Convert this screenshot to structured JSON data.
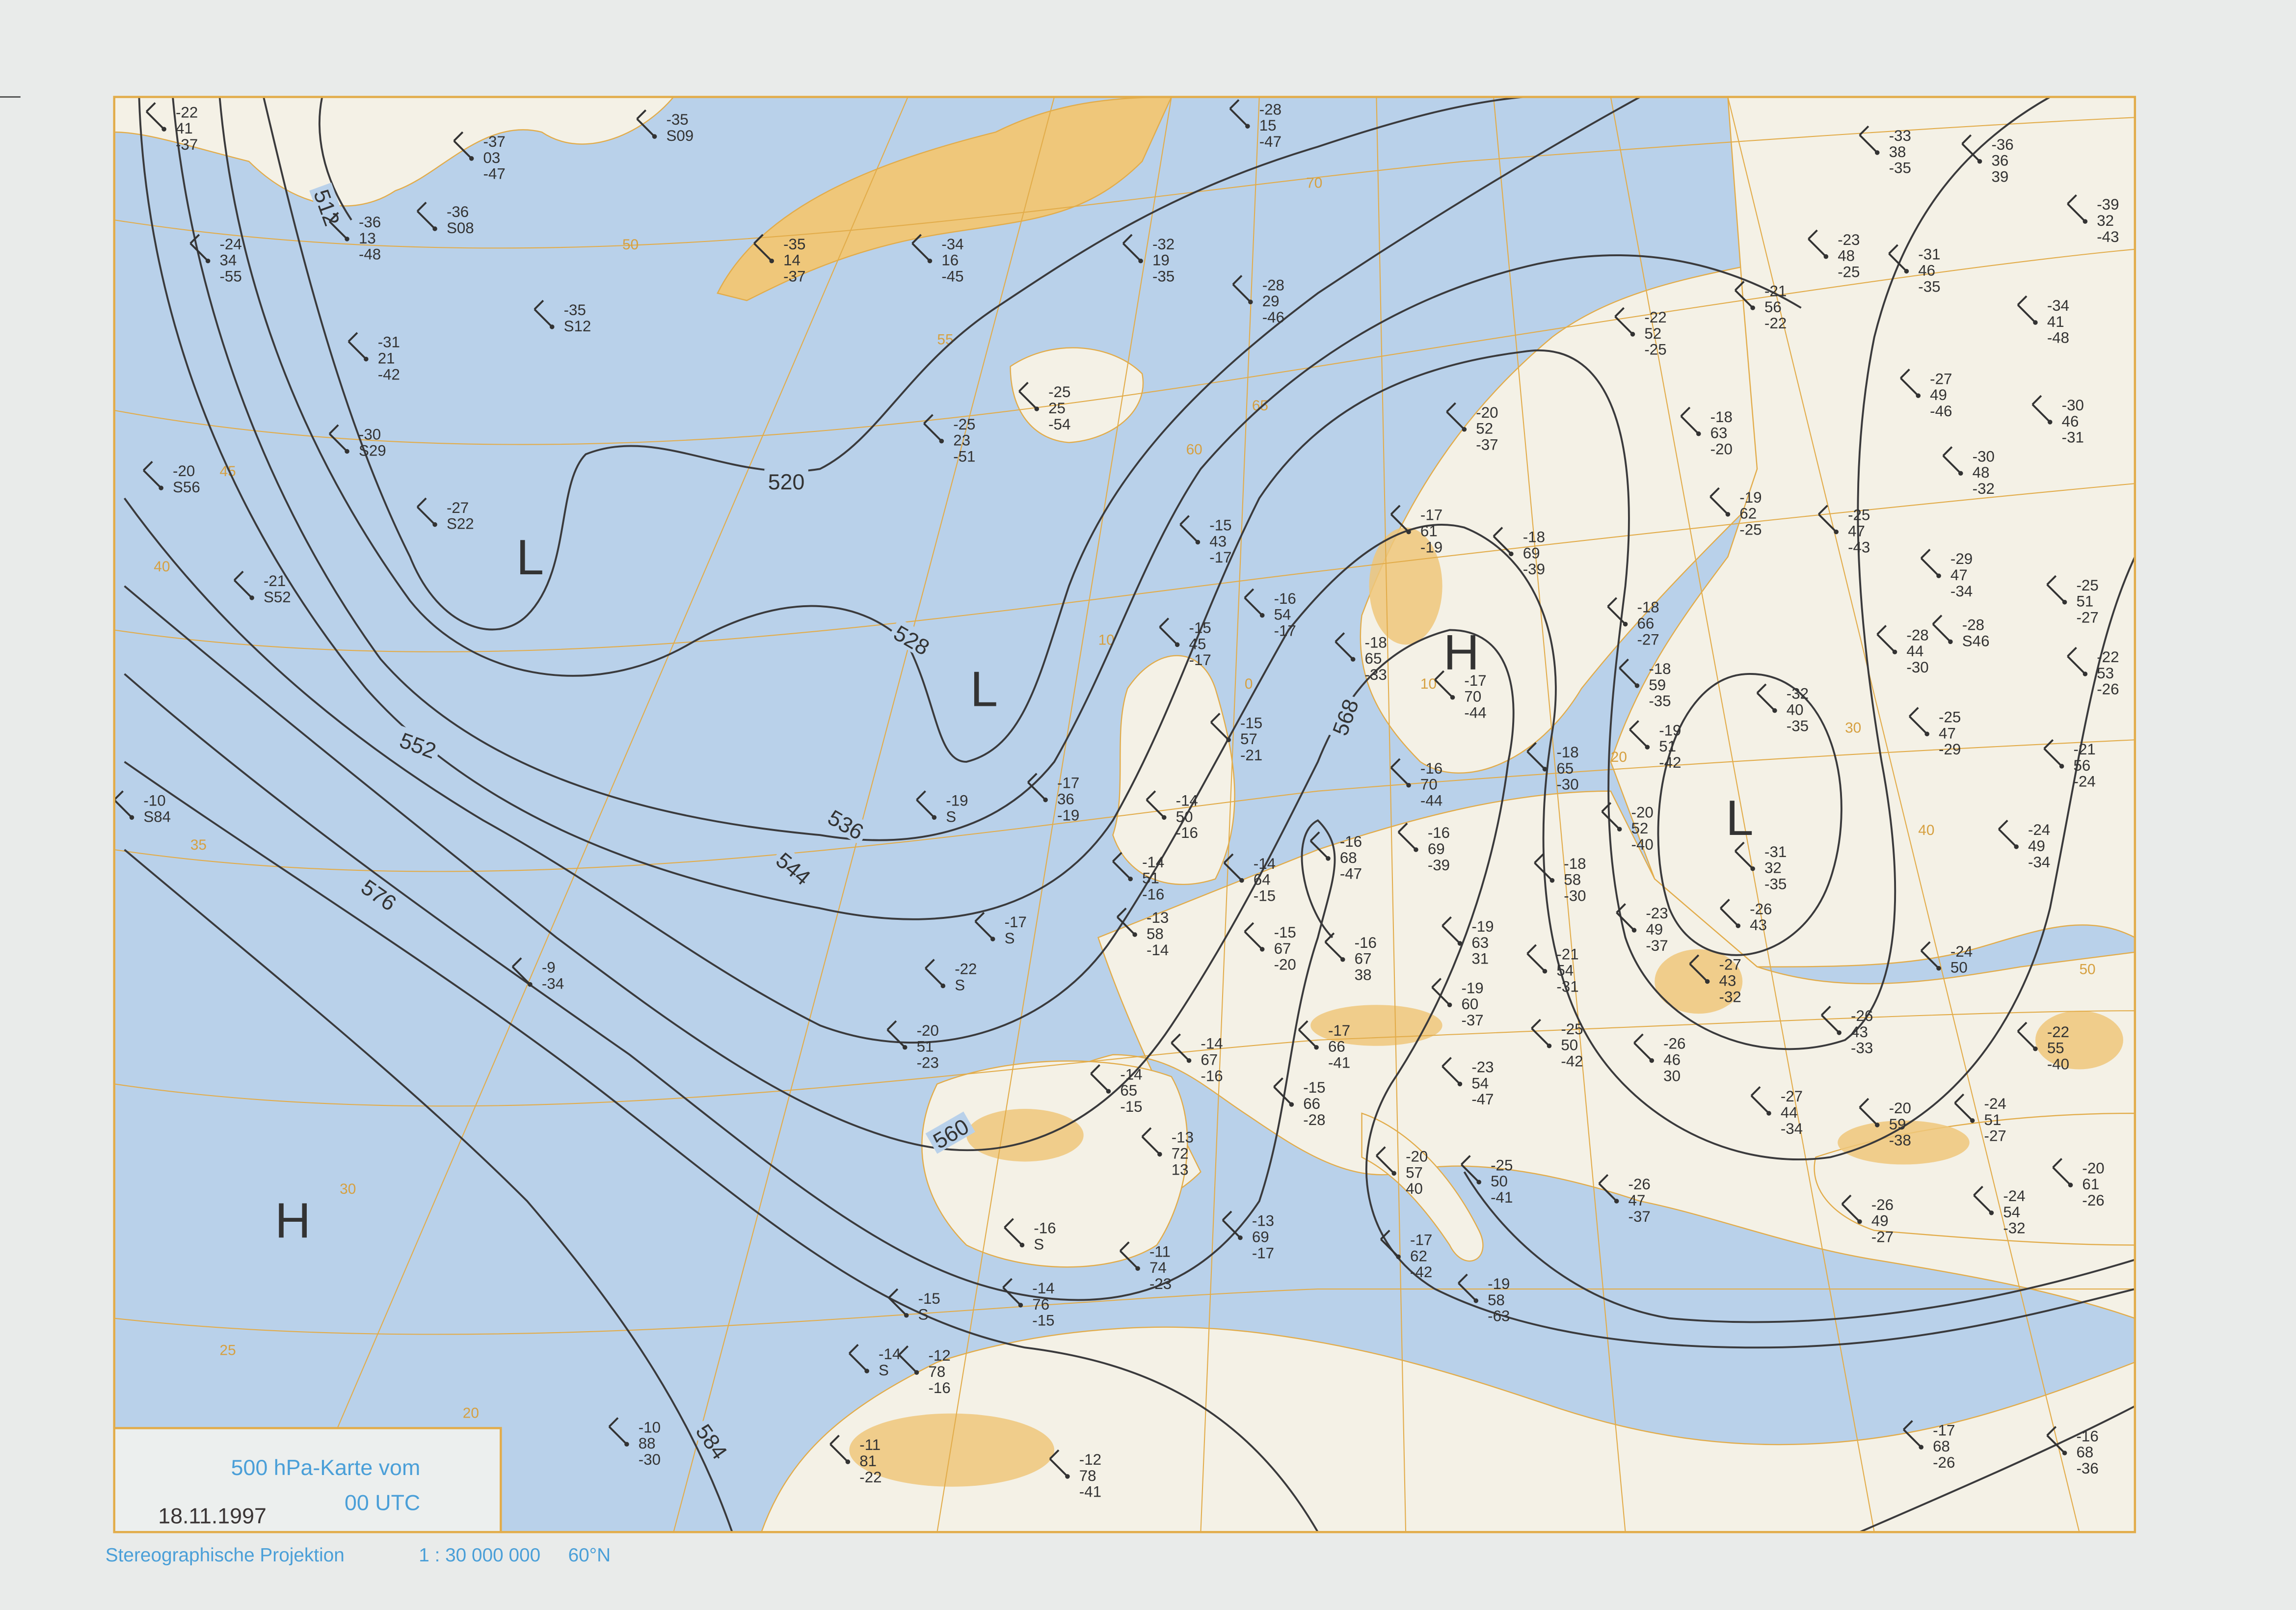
{
  "title": "500 hPa-Karte vom",
  "time": "00 UTC",
  "date": "18.11.1997",
  "footer": {
    "projection": "Stereographische Projektion",
    "scale": "1 : 30 000 000",
    "latitude": "60°N"
  },
  "colors": {
    "sea": "#b9d1ea",
    "land": "#f4f1e6",
    "highland": "#efc77a",
    "grid": "#e2ac4a",
    "contour": "#3a3a3c",
    "caption": "#4a9fd8",
    "paper": "#e9ebea"
  },
  "contours": [
    {
      "label": "512"
    },
    {
      "label": "520"
    },
    {
      "label": "528"
    },
    {
      "label": "536"
    },
    {
      "label": "544"
    },
    {
      "label": "552"
    },
    {
      "label": "560"
    },
    {
      "label": "568"
    },
    {
      "label": "576"
    },
    {
      "label": "584"
    }
  ],
  "pressure_centers": [
    {
      "type": "H"
    },
    {
      "type": "H"
    },
    {
      "type": "L"
    },
    {
      "type": "L"
    },
    {
      "type": "L"
    }
  ],
  "grid_labels": [
    "50",
    "45",
    "40",
    "35",
    "30",
    "25",
    "20",
    "55",
    "60",
    "65",
    "70",
    "10",
    "0",
    "10",
    "20",
    "30",
    "40",
    "50"
  ],
  "stations": [
    {
      "a": "-22",
      "b": "41",
      "c": "-37"
    },
    {
      "a": "-37",
      "b": "03",
      "c": "-47"
    },
    {
      "a": "-35",
      "b": "S09",
      "c": ""
    },
    {
      "a": "-36",
      "b": "S08",
      "c": ""
    },
    {
      "a": "-36",
      "b": "13",
      "c": "-48"
    },
    {
      "a": "-24",
      "b": "34",
      "c": "-55"
    },
    {
      "a": "-35",
      "b": "S12",
      "c": ""
    },
    {
      "a": "-31",
      "b": "21",
      "c": "-42"
    },
    {
      "a": "-30",
      "b": "S29",
      "c": ""
    },
    {
      "a": "-20",
      "b": "S56",
      "c": ""
    },
    {
      "a": "-27",
      "b": "S22",
      "c": ""
    },
    {
      "a": "-21",
      "b": "S52",
      "c": ""
    },
    {
      "a": "-10",
      "b": "S84",
      "c": ""
    },
    {
      "a": "-35",
      "b": "14",
      "c": "-37"
    },
    {
      "a": "-34",
      "b": "16",
      "c": "-45"
    },
    {
      "a": "-32",
      "b": "19",
      "c": "-35"
    },
    {
      "a": "-28",
      "b": "15",
      "c": "-47"
    },
    {
      "a": "-28",
      "b": "29",
      "c": "-46"
    },
    {
      "a": "-25",
      "b": "25",
      "c": "-54"
    },
    {
      "a": "-25",
      "b": "23",
      "c": "-51"
    },
    {
      "a": "-33",
      "b": "38",
      "c": "-35"
    },
    {
      "a": "-36",
      "b": "36",
      "c": "39"
    },
    {
      "a": "-39",
      "b": "32",
      "c": "-43"
    },
    {
      "a": "-23",
      "b": "48",
      "c": "-25"
    },
    {
      "a": "-31",
      "b": "46",
      "c": "-35"
    },
    {
      "a": "-21",
      "b": "56",
      "c": "-22"
    },
    {
      "a": "-22",
      "b": "52",
      "c": "-25"
    },
    {
      "a": "-34",
      "b": "41",
      "c": "-48"
    },
    {
      "a": "-27",
      "b": "49",
      "c": "-46"
    },
    {
      "a": "-30",
      "b": "46",
      "c": "-31"
    },
    {
      "a": "-20",
      "b": "52",
      "c": "-37"
    },
    {
      "a": "-18",
      "b": "63",
      "c": "-20"
    },
    {
      "a": "-30",
      "b": "48",
      "c": "-32"
    },
    {
      "a": "-19",
      "b": "62",
      "c": "-25"
    },
    {
      "a": "-17",
      "b": "61",
      "c": "-19"
    },
    {
      "a": "-18",
      "b": "69",
      "c": "-39"
    },
    {
      "a": "-15",
      "b": "43",
      "c": "-17"
    },
    {
      "a": "-25",
      "b": "47",
      "c": "-43"
    },
    {
      "a": "-29",
      "b": "47",
      "c": "-34"
    },
    {
      "a": "-25",
      "b": "51",
      "c": "-27"
    },
    {
      "a": "-16",
      "b": "54",
      "c": "-17"
    },
    {
      "a": "-28",
      "b": "S46",
      "c": ""
    },
    {
      "a": "-15",
      "b": "45",
      "c": "-17"
    },
    {
      "a": "-18",
      "b": "65",
      "c": "-33"
    },
    {
      "a": "-17",
      "b": "70",
      "c": "-44"
    },
    {
      "a": "-18",
      "b": "66",
      "c": "-27"
    },
    {
      "a": "-28",
      "b": "44",
      "c": "-30"
    },
    {
      "a": "-22",
      "b": "53",
      "c": "-26"
    },
    {
      "a": "-18",
      "b": "59",
      "c": "-35"
    },
    {
      "a": "-32",
      "b": "40",
      "c": "-35"
    },
    {
      "a": "-15",
      "b": "57",
      "c": "-21"
    },
    {
      "a": "-19",
      "b": "51",
      "c": "-42"
    },
    {
      "a": "-25",
      "b": "47",
      "c": "-29"
    },
    {
      "a": "-21",
      "b": "56",
      "c": "-24"
    },
    {
      "a": "-16",
      "b": "70",
      "c": "-44"
    },
    {
      "a": "-18",
      "b": "65",
      "c": "-30"
    },
    {
      "a": "-17",
      "b": "36",
      "c": "-19"
    },
    {
      "a": "-19",
      "b": "S",
      "c": ""
    },
    {
      "a": "-14",
      "b": "50",
      "c": "-16"
    },
    {
      "a": "-20",
      "b": "52",
      "c": "-40"
    },
    {
      "a": "-24",
      "b": "49",
      "c": "-34"
    },
    {
      "a": "-16",
      "b": "68",
      "c": "-47"
    },
    {
      "a": "-16",
      "b": "69",
      "c": "-39"
    },
    {
      "a": "-14",
      "b": "51",
      "c": "-16"
    },
    {
      "a": "-14",
      "b": "64",
      "c": "-15"
    },
    {
      "a": "-18",
      "b": "58",
      "c": "-30"
    },
    {
      "a": "-31",
      "b": "32",
      "c": "-35"
    },
    {
      "a": "-17",
      "b": "S",
      "c": ""
    },
    {
      "a": "-13",
      "b": "58",
      "c": "-14"
    },
    {
      "a": "-15",
      "b": "67",
      "c": "-20"
    },
    {
      "a": "-16",
      "b": "67",
      "c": "38"
    },
    {
      "a": "-19",
      "b": "63",
      "c": "31"
    },
    {
      "a": "-23",
      "b": "49",
      "c": "-37"
    },
    {
      "a": "-26",
      "b": "43",
      "c": ""
    },
    {
      "a": "-24",
      "b": "50",
      "c": ""
    },
    {
      "a": "-22",
      "b": "S",
      "c": ""
    },
    {
      "a": "-21",
      "b": "54",
      "c": "-31"
    },
    {
      "a": "-27",
      "b": "43",
      "c": "-32"
    },
    {
      "a": "-9",
      "b": "-34",
      "c": ""
    },
    {
      "a": "-19",
      "b": "60",
      "c": "-37"
    },
    {
      "a": "-20",
      "b": "51",
      "c": "-23"
    },
    {
      "a": "-17",
      "b": "66",
      "c": "-41"
    },
    {
      "a": "-25",
      "b": "50",
      "c": "-42"
    },
    {
      "a": "-26",
      "b": "43",
      "c": "-33"
    },
    {
      "a": "-22",
      "b": "55",
      "c": "-40"
    },
    {
      "a": "-14",
      "b": "67",
      "c": "-16"
    },
    {
      "a": "-14",
      "b": "65",
      "c": "-15"
    },
    {
      "a": "-15",
      "b": "66",
      "c": "-28"
    },
    {
      "a": "-23",
      "b": "54",
      "c": "-47"
    },
    {
      "a": "-26",
      "b": "46",
      "c": "30"
    },
    {
      "a": "-27",
      "b": "44",
      "c": "-34"
    },
    {
      "a": "-20",
      "b": "59",
      "c": "-38"
    },
    {
      "a": "-24",
      "b": "51",
      "c": "-27"
    },
    {
      "a": "-13",
      "b": "72",
      "c": "13"
    },
    {
      "a": "-20",
      "b": "57",
      "c": "40"
    },
    {
      "a": "-25",
      "b": "50",
      "c": "-41"
    },
    {
      "a": "-26",
      "b": "47",
      "c": "-37"
    },
    {
      "a": "-26",
      "b": "49",
      "c": "-27"
    },
    {
      "a": "-24",
      "b": "54",
      "c": "-32"
    },
    {
      "a": "-20",
      "b": "61",
      "c": "-26"
    },
    {
      "a": "-16",
      "b": "S",
      "c": ""
    },
    {
      "a": "-13",
      "b": "69",
      "c": "-17"
    },
    {
      "a": "-17",
      "b": "62",
      "c": "-42"
    },
    {
      "a": "-11",
      "b": "74",
      "c": "-23"
    },
    {
      "a": "-19",
      "b": "58",
      "c": "-63"
    },
    {
      "a": "-15",
      "b": "S",
      "c": ""
    },
    {
      "a": "-14",
      "b": "76",
      "c": "-15"
    },
    {
      "a": "-14",
      "b": "S",
      "c": ""
    },
    {
      "a": "-12",
      "b": "78",
      "c": "-16"
    },
    {
      "a": "-10",
      "b": "88",
      "c": "-30"
    },
    {
      "a": "-11",
      "b": "81",
      "c": "-22"
    },
    {
      "a": "-12",
      "b": "78",
      "c": "-41"
    },
    {
      "a": "-17",
      "b": "68",
      "c": "-26"
    },
    {
      "a": "-16",
      "b": "68",
      "c": "-36"
    }
  ]
}
